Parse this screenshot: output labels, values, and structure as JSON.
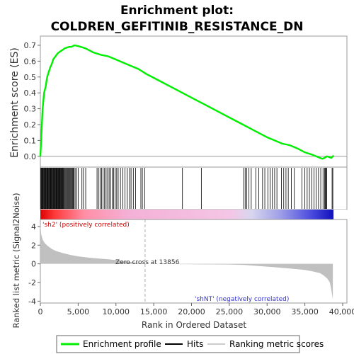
{
  "title_line1": "Enrichment plot:",
  "title_line2": "COLDREN_GEFITINIB_RESISTANCE_DN",
  "colors": {
    "enrichment_line": "#00ee00",
    "hits": "#000000",
    "metric_fill": "#c0c0c0",
    "pos_label": "#cc0000",
    "neg_label": "#3333cc",
    "zero_line": "#888888",
    "frame": "#999999"
  },
  "chart_data": [
    {
      "type": "line",
      "name": "enrichment-profile",
      "ylabel": "Enrichment score (ES)",
      "xlim": [
        0,
        40000
      ],
      "ylim": [
        -0.05,
        0.74
      ],
      "yticks": [
        "0.0",
        "0.1",
        "0.2",
        "0.3",
        "0.4",
        "0.5",
        "0.6",
        "0.7"
      ],
      "x": [
        0,
        150,
        300,
        500,
        700,
        900,
        1100,
        1300,
        1500,
        1700,
        2000,
        2300,
        2600,
        2900,
        3200,
        3500,
        3800,
        4100,
        4500,
        5000,
        6000,
        7000,
        8000,
        9000,
        10000,
        11000,
        12000,
        13000,
        14000,
        16000,
        18000,
        20000,
        22000,
        24000,
        26000,
        28000,
        30000,
        32000,
        33000,
        34000,
        35000,
        36000,
        36500,
        37000,
        37300,
        37600,
        37900,
        38200,
        38500,
        38800
      ],
      "values": [
        0.0,
        0.15,
        0.3,
        0.4,
        0.44,
        0.5,
        0.53,
        0.56,
        0.58,
        0.61,
        0.63,
        0.65,
        0.66,
        0.67,
        0.68,
        0.685,
        0.69,
        0.69,
        0.7,
        0.695,
        0.68,
        0.655,
        0.64,
        0.63,
        0.61,
        0.59,
        0.57,
        0.55,
        0.52,
        0.47,
        0.42,
        0.37,
        0.32,
        0.27,
        0.22,
        0.17,
        0.12,
        0.08,
        0.07,
        0.05,
        0.025,
        0.01,
        0.0,
        -0.01,
        -0.015,
        -0.01,
        0.0,
        -0.005,
        -0.01,
        0.005
      ]
    },
    {
      "type": "hits",
      "name": "hits",
      "hit_positions": [
        60,
        130,
        200,
        280,
        350,
        420,
        500,
        580,
        650,
        720,
        800,
        870,
        950,
        1020,
        1100,
        1170,
        1250,
        1320,
        1400,
        1470,
        1550,
        1620,
        1700,
        1780,
        1850,
        1930,
        2000,
        2080,
        2150,
        2230,
        2300,
        2380,
        2450,
        2530,
        2600,
        2680,
        2750,
        2830,
        2900,
        2980,
        3050,
        3150,
        3250,
        3350,
        3450,
        3550,
        3650,
        3750,
        3850,
        3950,
        4050,
        4150,
        4250,
        4350,
        4450,
        4600,
        4800,
        5000,
        5500,
        5700,
        6000,
        7500,
        7700,
        7900,
        8100,
        8300,
        8500,
        8700,
        8900,
        9100,
        9300,
        9500,
        9700,
        9900,
        10100,
        10300,
        10600,
        10900,
        11200,
        11500,
        11800,
        12000,
        12300,
        12600,
        13300,
        13500,
        13800,
        18800,
        21300,
        26900,
        27100,
        27300,
        27600,
        27900,
        28500,
        28900,
        29400,
        29700,
        30100,
        30400,
        30700,
        31000,
        31300,
        31900,
        32200,
        32500,
        32800,
        33200,
        33600,
        34600,
        35000,
        35300,
        35600,
        35900,
        36200,
        36500,
        36800,
        37100,
        37400,
        37600,
        37700,
        37800,
        37900,
        38600,
        38700
      ]
    },
    {
      "type": "area",
      "name": "ranked-list-metric",
      "ylabel": "Ranked list metric (Signal2Noise)",
      "xlabel": "Rank in Ordered Dataset",
      "xlim": [
        0,
        40000
      ],
      "ylim": [
        -4.2,
        4.6
      ],
      "yticks": [
        "-4",
        "-2",
        "0",
        "2",
        "4"
      ],
      "xticks": [
        "0",
        "5,000",
        "10,000",
        "15,000",
        "20,000",
        "25,000",
        "30,000",
        "35,000",
        "40,000"
      ],
      "x": [
        0,
        100,
        300,
        600,
        1000,
        1500,
        2000,
        3000,
        4000,
        5000,
        7000,
        9000,
        10000,
        11000,
        12000,
        13000,
        13856,
        16000,
        20000,
        25000,
        27000,
        30000,
        33000,
        35000,
        36000,
        37000,
        37500,
        38000,
        38300,
        38500,
        38700
      ],
      "values": [
        4.3,
        3.2,
        2.6,
        2.2,
        1.9,
        1.6,
        1.4,
        1.15,
        0.95,
        0.8,
        0.62,
        0.48,
        0.4,
        0.3,
        0.2,
        0.1,
        0.0,
        -0.02,
        -0.04,
        -0.07,
        -0.12,
        -0.3,
        -0.5,
        -0.65,
        -0.8,
        -1.0,
        -1.25,
        -1.6,
        -2.0,
        -2.8,
        -3.8
      ]
    }
  ],
  "annotations": {
    "pos_label": "'sh2' (positively correlated)",
    "neg_label": "'shNT' (negatively correlated)",
    "zero_cross": "Zero cross at 13856"
  },
  "legend": {
    "items": [
      {
        "label": "Enrichment profile",
        "symbol": "line-green"
      },
      {
        "label": "Hits",
        "symbol": "line-black"
      },
      {
        "label": "Ranking metric scores",
        "symbol": "line-gray"
      }
    ]
  }
}
